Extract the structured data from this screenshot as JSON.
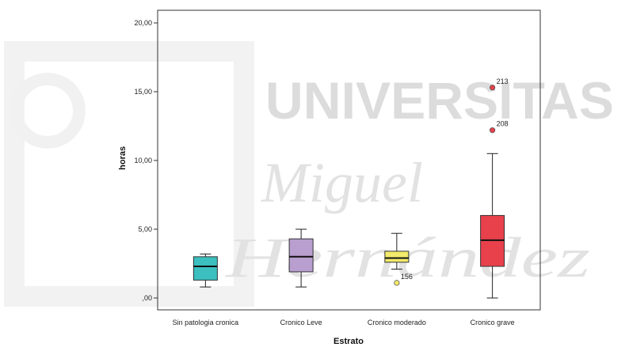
{
  "watermark": {
    "line1": "UNIVERSITAS",
    "line2": "Miguel",
    "line3": "Hernández"
  },
  "chart_data": {
    "type": "boxplot",
    "xlabel": "Estrato",
    "ylabel": "horas",
    "ylim": [
      0,
      20
    ],
    "yticks": [
      0,
      5,
      10,
      15,
      20
    ],
    "ytick_labels": [
      ",00",
      "5,00",
      "10,00",
      "15,00",
      "20,00"
    ],
    "grid": false,
    "categories": [
      "Sin patologia cronica",
      "Cronico Leve",
      "Cronico moderado",
      "Cronico grave"
    ],
    "boxes": [
      {
        "category": "Sin patologia cronica",
        "color": "#3bbfbf",
        "whisker_low": 0.8,
        "q1": 1.3,
        "median": 2.3,
        "q3": 3.0,
        "whisker_high": 3.2,
        "outliers": []
      },
      {
        "category": "Cronico Leve",
        "color": "#b89fd0",
        "whisker_low": 0.8,
        "q1": 1.9,
        "median": 3.0,
        "q3": 4.3,
        "whisker_high": 5.0,
        "outliers": []
      },
      {
        "category": "Cronico moderado",
        "color": "#f2ea6a",
        "whisker_low": 2.1,
        "q1": 2.6,
        "median": 2.9,
        "q3": 3.4,
        "whisker_high": 4.7,
        "outliers": [
          {
            "value": 1.1,
            "label": "156"
          }
        ]
      },
      {
        "category": "Cronico grave",
        "color": "#e8414b",
        "whisker_low": 0.0,
        "q1": 2.3,
        "median": 4.2,
        "q3": 6.0,
        "whisker_high": 10.5,
        "outliers": [
          {
            "value": 15.3,
            "label": "213"
          },
          {
            "value": 12.2,
            "label": "208"
          }
        ]
      }
    ]
  }
}
